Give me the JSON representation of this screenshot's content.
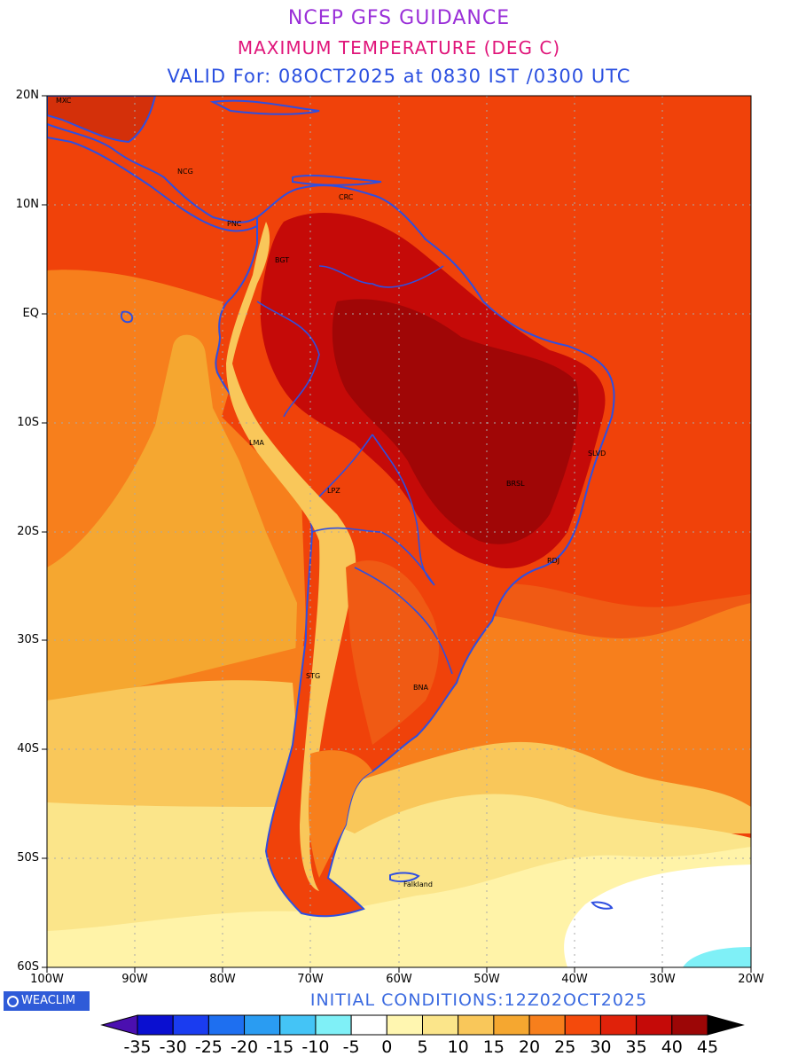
{
  "title": {
    "line1": "NCEP GFS GUIDANCE",
    "line2": "MAXIMUM TEMPERATURE (DEG C)",
    "line3": "VALID For: 08OCT2025 at 0830 IST /0300 UTC"
  },
  "map": {
    "lat_labels": [
      "20N",
      "10N",
      "EQ",
      "10S",
      "20S",
      "30S",
      "40S",
      "50S",
      "60S"
    ],
    "lon_labels": [
      "100W",
      "90W",
      "80W",
      "70W",
      "60W",
      "50W",
      "40W",
      "30W",
      "20W"
    ],
    "cities": [
      {
        "code": "MXC"
      },
      {
        "code": "NCG"
      },
      {
        "code": "CRC"
      },
      {
        "code": "PNC"
      },
      {
        "code": "BGT"
      },
      {
        "code": "LMA"
      },
      {
        "code": "LPZ"
      },
      {
        "code": "SLVD"
      },
      {
        "code": "BRSL"
      },
      {
        "code": "RDJ"
      },
      {
        "code": "STG"
      },
      {
        "code": "BNA"
      },
      {
        "code": "Falkland"
      }
    ]
  },
  "footer": {
    "logo_text": "WEACLIM",
    "initial_conditions": "INITIAL CONDITIONS:12Z02OCT2025"
  },
  "colorbar": {
    "labels": [
      "-35",
      "-30",
      "-25",
      "-20",
      "-15",
      "-10",
      "-5",
      "0",
      "5",
      "10",
      "15",
      "20",
      "25",
      "30",
      "35",
      "40",
      "45"
    ],
    "colors": [
      "#4b0fb0",
      "#0a0fd0",
      "#1a3cf0",
      "#1e6ff0",
      "#2a9cf2",
      "#44c4f6",
      "#7ff0f7",
      "#ffffff",
      "#fff6b0",
      "#fbe58a",
      "#f9c75a",
      "#f5a730",
      "#f77f1c",
      "#f44a0c",
      "#e0220a",
      "#c50a08",
      "#9c0606",
      "#000000"
    ]
  }
}
